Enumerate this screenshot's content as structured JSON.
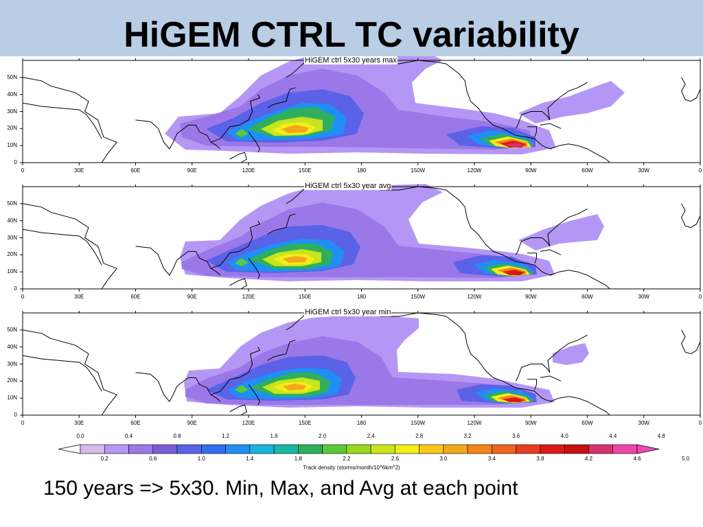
{
  "slide": {
    "title": "HiGEM CTRL TC variability",
    "caption": "150 years => 5x30. Min, Max, and Avg at each point"
  },
  "panels": [
    {
      "title": "HiGEM ctrl 5x30 years max",
      "peak": "max"
    },
    {
      "title": "HiGEM ctrl 5x30 year avg",
      "peak": "avg"
    },
    {
      "title": "HiGEM ctrl 5x30 year min",
      "peak": "min"
    }
  ],
  "axes": {
    "lat_labels": [
      "50N",
      "40N",
      "30N",
      "20N",
      "10N",
      "0"
    ],
    "lon_labels": [
      "0",
      "30E",
      "60E",
      "90E",
      "120E",
      "150E",
      "180",
      "150W",
      "120W",
      "90W",
      "60W",
      "30W",
      "0"
    ]
  },
  "colorbar": {
    "caption": "Track density (storms/month/10^6km^2)",
    "top_labels": [
      "0.0",
      "0.4",
      "0.8",
      "1.2",
      "1.6",
      "2.0",
      "2.4",
      "2.8",
      "3.2",
      "3.6",
      "4.0",
      "4.4",
      "4.8"
    ],
    "bottom_labels": [
      "0.2",
      "0.6",
      "1.0",
      "1.4",
      "1.8",
      "2.2",
      "2.6",
      "3.0",
      "3.4",
      "3.8",
      "4.2",
      "4.6",
      "5.0"
    ],
    "colors": [
      "#ffffff",
      "#d8b8e8",
      "#b497f5",
      "#9a78e8",
      "#7b5cd6",
      "#5a62e8",
      "#2f6ff0",
      "#1f8ff5",
      "#1ab3e0",
      "#19b6a0",
      "#2fae5e",
      "#5bc83a",
      "#9ad81f",
      "#c8e41c",
      "#f2ee1a",
      "#f7c81a",
      "#f5a71c",
      "#f2861c",
      "#ee6420",
      "#e83c20",
      "#dc1818",
      "#c81010",
      "#d63070",
      "#ee44a8",
      "#f04ab8"
    ]
  }
}
